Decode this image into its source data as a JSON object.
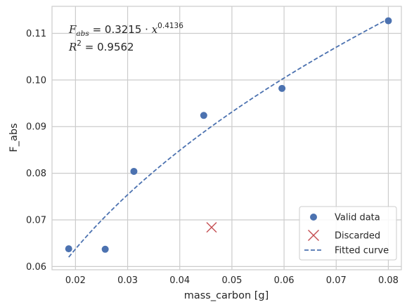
{
  "chart_data": {
    "type": "scatter",
    "xlabel": "mass_carbon [g]",
    "ylabel": "F_abs",
    "xlim": [
      0.0155,
      0.0825
    ],
    "ylim": [
      0.0593,
      0.1158
    ],
    "x_ticks": [
      0.02,
      0.03,
      0.04,
      0.05,
      0.06,
      0.07,
      0.08
    ],
    "x_tick_labels": [
      "0.02",
      "0.03",
      "0.04",
      "0.05",
      "0.06",
      "0.07",
      "0.08"
    ],
    "y_ticks": [
      0.06,
      0.07,
      0.08,
      0.09,
      0.1,
      0.11
    ],
    "y_tick_labels": [
      "0.06",
      "0.07",
      "0.08",
      "0.09",
      "0.10",
      "0.11"
    ],
    "grid": true,
    "legend_position": "bottom-right",
    "series": [
      {
        "name": "Valid data",
        "kind": "points",
        "marker": "circle",
        "color": "#4c72b0",
        "x": [
          0.0187,
          0.0257,
          0.0312,
          0.0446,
          0.0596,
          0.08
        ],
        "y": [
          0.0638,
          0.0637,
          0.0804,
          0.0924,
          0.0982,
          0.1127
        ]
      },
      {
        "name": "Discarded",
        "kind": "points",
        "marker": "x",
        "color": "#c44e52",
        "x": [
          0.0461
        ],
        "y": [
          0.0684
        ]
      },
      {
        "name": "Fitted curve",
        "kind": "line",
        "style": "dashed",
        "color": "#4c72b0",
        "coefficient": 0.3215,
        "exponent": 0.4136,
        "x_range": [
          0.0187,
          0.08
        ]
      }
    ],
    "annotation": {
      "equation_lhs": "F",
      "equation_lhs_sub": "abs",
      "equation_rhs": " = 0.3215 · ",
      "equation_var": "x",
      "equation_exp": "0.4136",
      "r2_lhs": "R",
      "r2_sup": "2",
      "r2_rhs": " = 0.9562"
    }
  }
}
